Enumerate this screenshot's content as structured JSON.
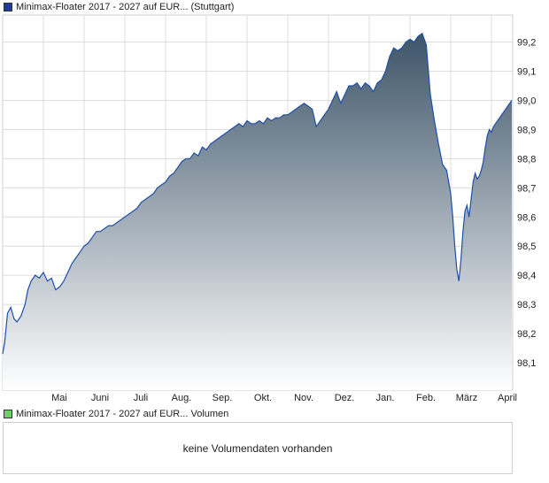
{
  "legend": {
    "price_label": "Minimax-Floater 2017 - 2027 auf EUR... (Stuttgart)",
    "price_color": "#1f3f8f",
    "volume_label": "Minimax-Floater 2017 - 2027 auf EUR... Volumen",
    "volume_color": "#6fcf6f"
  },
  "volume_panel": {
    "message": "keine Volumendaten vorhanden"
  },
  "chart_data": {
    "type": "area",
    "title": "",
    "xlabel": "",
    "ylabel": "",
    "ylim": [
      98.0,
      99.25
    ],
    "y_ticks": [
      "98,1",
      "98,2",
      "98,3",
      "98,4",
      "98,5",
      "98,6",
      "98,7",
      "98,8",
      "98,9",
      "99,0",
      "99,1",
      "99,2"
    ],
    "y_tick_values": [
      98.1,
      98.2,
      98.3,
      98.4,
      98.5,
      98.6,
      98.7,
      98.8,
      98.9,
      99.0,
      99.1,
      99.2
    ],
    "x_ticks": [
      "Mai",
      "Juni",
      "Juli",
      "Aug.",
      "Sep.",
      "Okt.",
      "Nov.",
      "Dez.",
      "Jan.",
      "Feb.",
      "März",
      "April"
    ],
    "x_tick_months": [
      1,
      2,
      3,
      4,
      5,
      6,
      7,
      8,
      9,
      10,
      11,
      12
    ],
    "x_range_months": [
      0.0,
      12.6
    ],
    "grid": true,
    "legend": "top-left",
    "line_color": "#1f4fa8",
    "fill_top_color": "#3d5468",
    "fill_bottom_color": "#ffffff",
    "series": [
      {
        "x": [
          0.0,
          0.05,
          0.12,
          0.2,
          0.28,
          0.35,
          0.45,
          0.55,
          0.62,
          0.7,
          0.8,
          0.9,
          1.0,
          1.1,
          1.2,
          1.3,
          1.4,
          1.5,
          1.6,
          1.7,
          1.8,
          1.9,
          2.0,
          2.1,
          2.2,
          2.3,
          2.4,
          2.5,
          2.6,
          2.7,
          2.8,
          2.9,
          3.0,
          3.1,
          3.2,
          3.3,
          3.4,
          3.5,
          3.6,
          3.7,
          3.8,
          3.9,
          4.0,
          4.1,
          4.2,
          4.3,
          4.4,
          4.5,
          4.6,
          4.7,
          4.8,
          4.9,
          5.0,
          5.1,
          5.2,
          5.3,
          5.4,
          5.5,
          5.6,
          5.7,
          5.8,
          5.9,
          6.0,
          6.1,
          6.2,
          6.3,
          6.4,
          6.5,
          6.6,
          6.7,
          6.8,
          6.9,
          7.0,
          7.1,
          7.2,
          7.3,
          7.4,
          7.5,
          7.6,
          7.7,
          7.8,
          7.9,
          8.0,
          8.1,
          8.2,
          8.3,
          8.4,
          8.5,
          8.6,
          8.7,
          8.8,
          8.9,
          9.0,
          9.1,
          9.2,
          9.3,
          9.4,
          9.5,
          9.6,
          9.7,
          9.8,
          9.9,
          10.0,
          10.1,
          10.2,
          10.3,
          10.4,
          10.5,
          10.6,
          10.7,
          10.8,
          10.9,
          11.0,
          11.05,
          11.1,
          11.15,
          11.2,
          11.25,
          11.3,
          11.35,
          11.4,
          11.45,
          11.5,
          11.55,
          11.6,
          11.65,
          11.7,
          11.75,
          11.8,
          11.85,
          11.9,
          11.95,
          12.0,
          12.05,
          12.1,
          12.15,
          12.2,
          12.25,
          12.3,
          12.35,
          12.4,
          12.45,
          12.5
        ],
        "values": [
          98.13,
          98.17,
          98.27,
          98.29,
          98.25,
          98.24,
          98.26,
          98.3,
          98.35,
          98.38,
          98.4,
          98.39,
          98.41,
          98.38,
          98.39,
          98.35,
          98.36,
          98.38,
          98.41,
          98.44,
          98.46,
          98.48,
          98.5,
          98.51,
          98.53,
          98.55,
          98.55,
          98.56,
          98.57,
          98.57,
          98.58,
          98.59,
          98.6,
          98.61,
          98.62,
          98.63,
          98.65,
          98.66,
          98.67,
          98.68,
          98.7,
          98.71,
          98.72,
          98.74,
          98.75,
          98.77,
          98.79,
          98.8,
          98.8,
          98.82,
          98.81,
          98.84,
          98.83,
          98.85,
          98.86,
          98.87,
          98.88,
          98.89,
          98.9,
          98.91,
          98.92,
          98.91,
          98.93,
          98.92,
          98.92,
          98.93,
          98.92,
          98.94,
          98.93,
          98.94,
          98.94,
          98.95,
          98.95,
          98.96,
          98.97,
          98.98,
          98.99,
          98.98,
          98.97,
          98.91,
          98.93,
          98.95,
          98.97,
          99.0,
          99.03,
          98.99,
          99.02,
          99.05,
          99.05,
          99.06,
          99.04,
          99.06,
          99.05,
          99.03,
          99.06,
          99.07,
          99.1,
          99.15,
          99.18,
          99.17,
          99.18,
          99.2,
          99.21,
          99.2,
          99.22,
          99.23,
          99.19,
          99.02,
          98.93,
          98.85,
          98.78,
          98.76,
          98.68,
          98.6,
          98.5,
          98.42,
          98.38,
          98.45,
          98.55,
          98.62,
          98.64,
          98.6,
          98.66,
          98.72,
          98.75,
          98.73,
          98.74,
          98.76,
          98.79,
          98.84,
          98.88,
          98.9,
          98.89,
          98.91,
          98.92,
          98.93,
          98.94,
          98.95,
          98.96,
          98.97,
          98.98,
          98.99,
          99.0
        ]
      }
    ]
  }
}
